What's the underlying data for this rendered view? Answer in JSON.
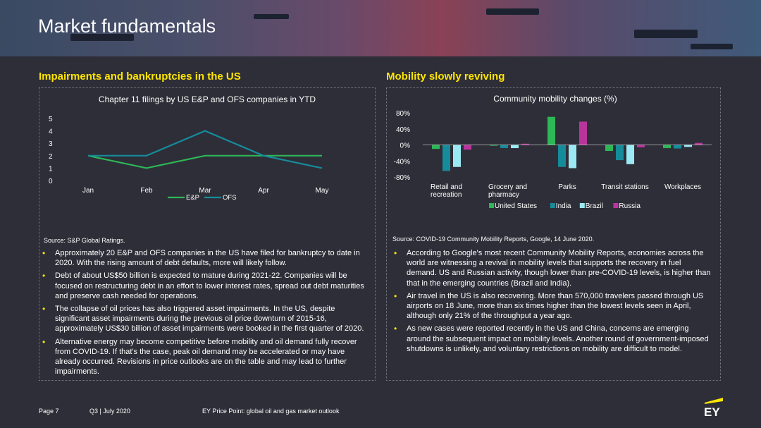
{
  "header": {
    "title": "Market fundamentals"
  },
  "left": {
    "section_title": "Impairments and bankruptcies in the US",
    "source": "Source: S&P Global Ratings.",
    "bullets": [
      "Approximately 20 E&P and OFS companies in the US have filed for bankruptcy to date in 2020. With the rising amount of debt defaults, more will likely follow.",
      "Debt of about US$50 billion is expected to mature during 2021-22. Companies will be focused on restructuring debt in an effort to lower interest rates, spread out debt maturities and preserve cash needed for operations.",
      "The collapse of oil prices has also triggered asset impairments. In the US, despite significant asset impairments during the previous oil price downturn of 2015-16, approximately US$30 billion of asset impairments were booked in the first quarter of 2020.",
      "Alternative energy may become competitive before mobility and oil demand fully recover from COVID-19. If that's the case, peak oil demand may be accelerated or may have already occurred. Revisions in price outlooks are on the table and may lead to further impairments."
    ]
  },
  "right": {
    "section_title": "Mobility slowly reviving",
    "source": "Source: COVID-19 Community Mobility Reports, Google, 14 June 2020.",
    "bullets": [
      "According to Google's most recent Community Mobility Reports, economies across the world are witnessing a revival in mobility levels that supports the recovery in fuel demand. US and Russian activity, though lower than pre-COVID-19 levels, is higher than that in the emerging countries (Brazil and India).",
      "Air travel in the US is also recovering. More than 570,000 travelers passed through US airports on 18 June, more than six times higher than the lowest levels seen in April, although only 21% of the throughput a year ago.",
      "As new cases were reported recently in the US and China, concerns are emerging around the subsequent impact on mobility levels. Another round of government-imposed shutdowns is unlikely, and voluntary restrictions on mobility are difficult to model."
    ]
  },
  "footer": {
    "page": "Page 7",
    "quarter": "Q3 | July 2020",
    "publication": "EY Price Point: global oil and gas market outlook",
    "logo": "EY"
  },
  "colors": {
    "accent": "#ffe600",
    "green": "#2db757",
    "teal": "#168b9a",
    "lightblue": "#9be9f2",
    "pink": "#b9359c",
    "background": "#2e2e38"
  },
  "chart_data": [
    {
      "type": "line",
      "title": "Chapter 11 filings by US E&P and OFS companies in YTD",
      "categories": [
        "Jan",
        "Feb",
        "Mar",
        "Apr",
        "May"
      ],
      "series": [
        {
          "name": "E&P",
          "values": [
            2,
            1,
            2,
            2,
            2
          ],
          "color": "#2db757"
        },
        {
          "name": "OFS",
          "values": [
            2,
            2,
            4,
            2,
            1
          ],
          "color": "#168b9a"
        }
      ],
      "ylim": [
        0,
        5
      ],
      "yticks": [
        "0",
        "1",
        "2",
        "3",
        "4",
        "5"
      ],
      "legend": "bottom"
    },
    {
      "type": "bar",
      "title": "Community mobility changes (%)",
      "categories": [
        [
          "Retail and",
          "recreation"
        ],
        [
          "Grocery and",
          "pharmacy"
        ],
        [
          "Parks"
        ],
        [
          "Transit stations"
        ],
        [
          "Workplaces"
        ]
      ],
      "series": [
        {
          "name": "United States",
          "values": [
            -10,
            -2,
            70,
            -15,
            -8
          ],
          "color": "#2db757"
        },
        {
          "name": "India",
          "values": [
            -65,
            -8,
            -55,
            -38,
            -9
          ],
          "color": "#168b9a"
        },
        {
          "name": "Brazil",
          "values": [
            -55,
            -8,
            -58,
            -48,
            -5
          ],
          "color": "#9be9f2"
        },
        {
          "name": "Russia",
          "values": [
            -12,
            3,
            58,
            -6,
            5
          ],
          "color": "#b9359c"
        }
      ],
      "ylim": [
        -80,
        80
      ],
      "yticks": [
        "80%",
        "40%",
        "0%",
        "-40%",
        "-80%"
      ],
      "legend": "bottom"
    }
  ]
}
